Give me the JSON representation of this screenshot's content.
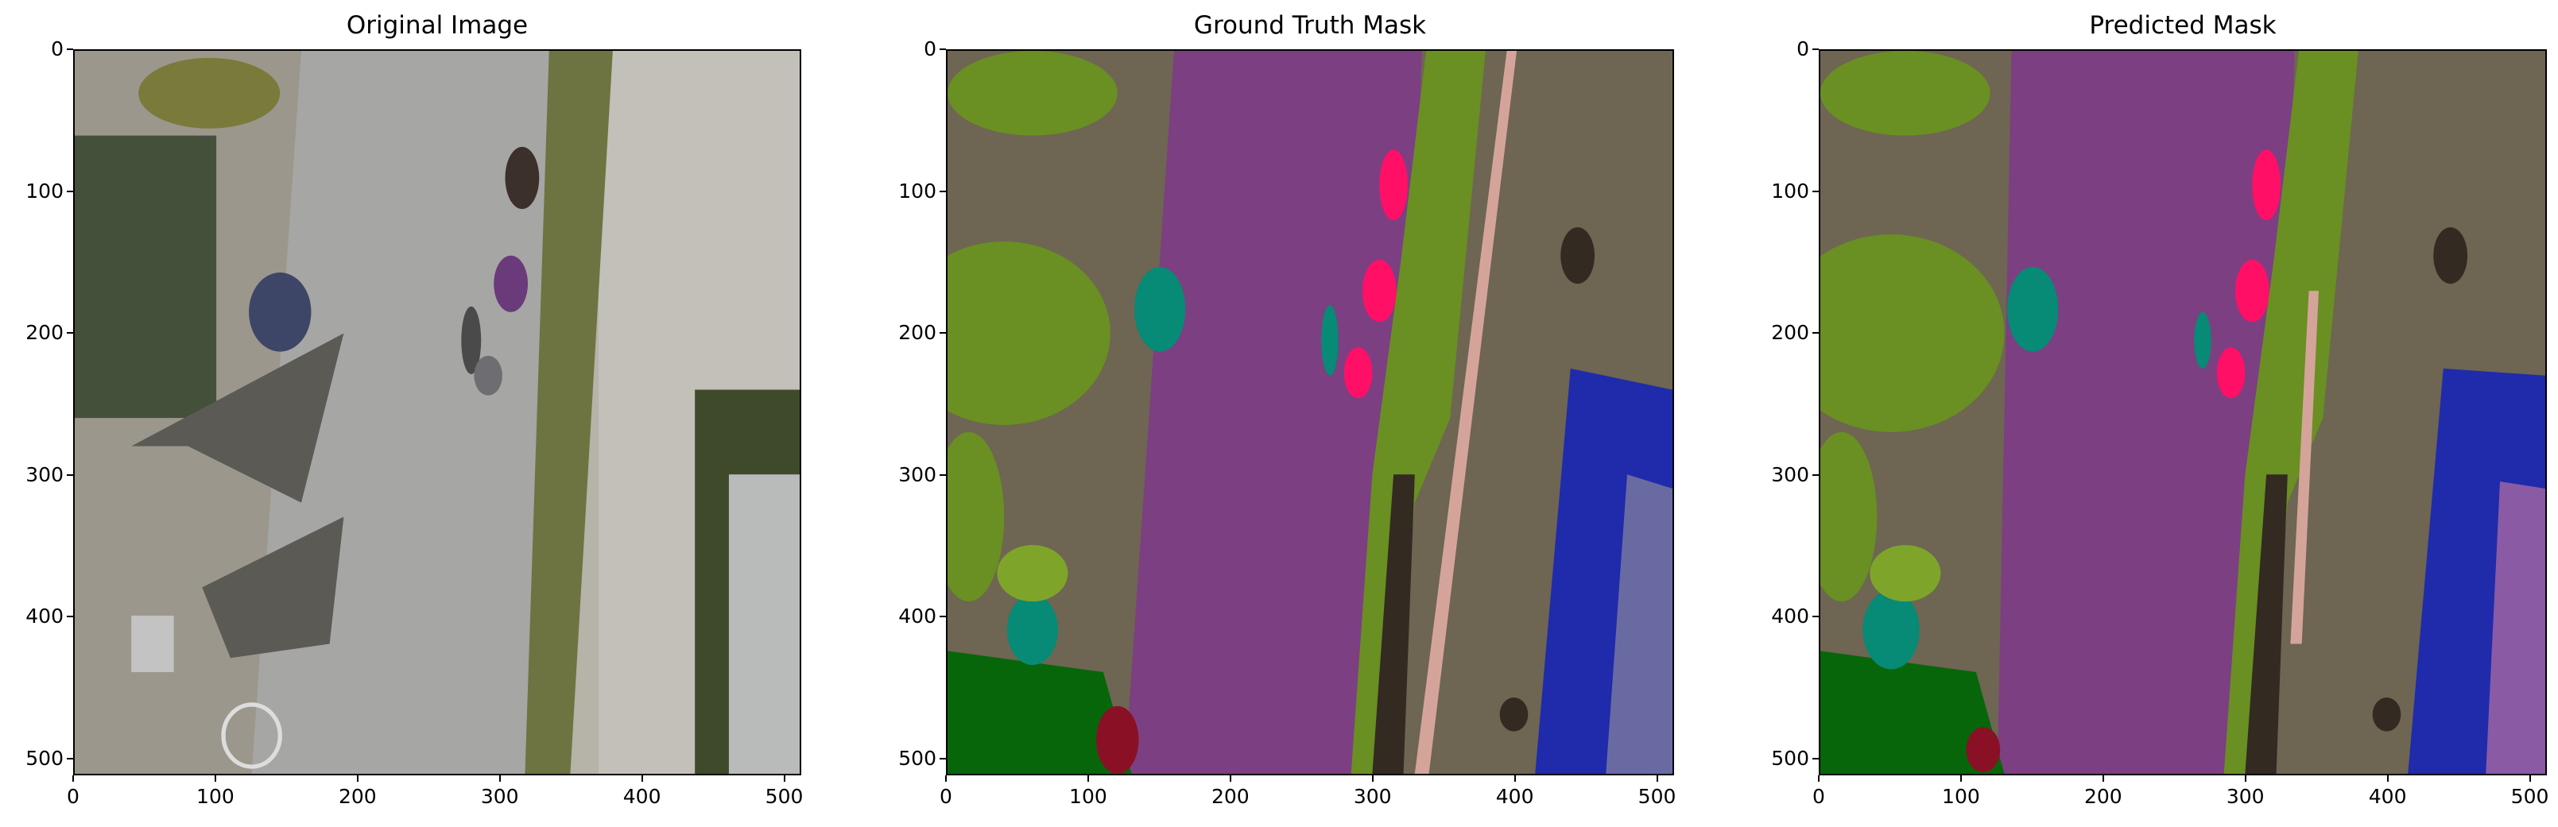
{
  "panels": [
    {
      "title": "Original Image"
    },
    {
      "title": "Ground Truth Mask"
    },
    {
      "title": "Predicted Mask"
    }
  ],
  "axes": {
    "x_ticks": [
      "0",
      "100",
      "200",
      "300",
      "400",
      "500"
    ],
    "y_ticks": [
      "0",
      "100",
      "200",
      "300",
      "400",
      "500"
    ],
    "x_tick_values": [
      0,
      100,
      200,
      300,
      400,
      500
    ],
    "y_tick_values": [
      0,
      100,
      200,
      300,
      400,
      500
    ],
    "xlim": [
      0,
      512
    ],
    "ylim": [
      512,
      0
    ]
  },
  "colors": {
    "path": "#7c3f82",
    "ground": "#6e6553",
    "vegetation": "#6a8f22",
    "light_vegetation": "#7ea52a",
    "tree": "#07660a",
    "water": "#1f2bab",
    "pool": "#6a6aa2",
    "person": "#ff1066",
    "object_teal": "#078a76",
    "bike": "#8a1026",
    "rock": "#332a22",
    "pink_path": "#d4a49a",
    "gravel": "#a8a59c",
    "road": "#9c9c9c"
  }
}
